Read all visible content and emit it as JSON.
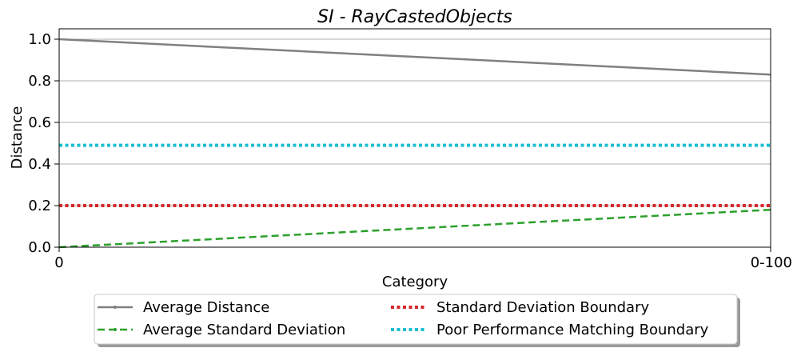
{
  "chart_data": {
    "type": "line",
    "title": "SI - RayCastedObjects",
    "xlabel": "Category",
    "ylabel": "Distance",
    "categories": [
      "0",
      "0-100"
    ],
    "ylim": [
      0,
      1.05
    ],
    "yticks": [
      0.0,
      0.2,
      0.4,
      0.6,
      0.8,
      1.0
    ],
    "ytick_labels": [
      "0.0",
      "0.2",
      "0.4",
      "0.6",
      "0.8",
      "1.0"
    ],
    "grid": "horizontal",
    "legend_placement": "bottom-center",
    "series": [
      {
        "name": "Average Distance",
        "values": [
          1.0,
          0.83
        ],
        "color": "#808080",
        "style": "solid"
      },
      {
        "name": "Average Standard Deviation",
        "values": [
          0.0,
          0.18
        ],
        "color": "#2ca02c",
        "style": "dashed"
      },
      {
        "name": "Standard Deviation Boundary",
        "values": [
          0.2,
          0.2
        ],
        "color": "#d62728",
        "style": "dotted"
      },
      {
        "name": "Poor Performance Matching Boundary",
        "values": [
          0.49,
          0.49
        ],
        "color": "#17becf",
        "style": "dotted"
      }
    ]
  }
}
